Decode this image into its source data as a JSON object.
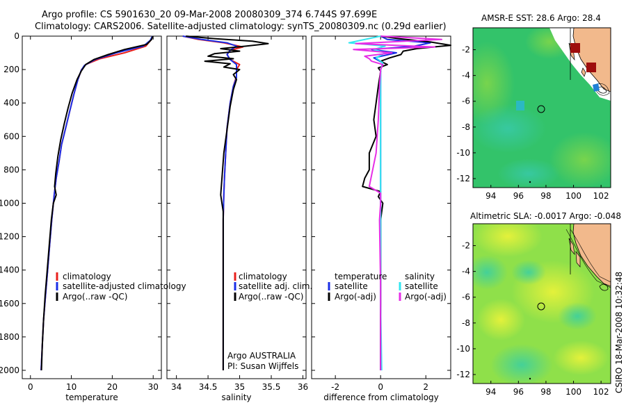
{
  "header": {
    "title_line1": "Argo profile: CS 5901630_20 09-Mar-2008 20080309_374 6.744S 97.699E",
    "title_line2": "Climatology: CARS2006. Satellite-adjusted climatology: synTS_20080309.nc (0.29d earlier)"
  },
  "colors": {
    "climatology": "#e8201c",
    "satellite": "#1a2ee6",
    "argo": "#000000",
    "salinity_satellite": "#33e6f0",
    "argo_adj": "#e62ee6",
    "land": "#f2b98c",
    "dark_red_marker": "#9e0d0d"
  },
  "chart_data": [
    {
      "type": "line",
      "xlabel": "temperature",
      "ylabel": "",
      "xlim": [
        -2,
        32
      ],
      "ylim": [
        2050,
        0
      ],
      "xticks": [
        0,
        10,
        20,
        30
      ],
      "yticks": [
        0,
        200,
        400,
        600,
        800,
        1000,
        1200,
        1400,
        1600,
        1800,
        2000
      ],
      "legend": [
        "climatology",
        "satellite-adjusted climatology",
        "Argo(..raw -QC)"
      ],
      "series": [
        {
          "name": "climatology",
          "color": "climatology",
          "points": [
            [
              29.8,
              0
            ],
            [
              29.4,
              25
            ],
            [
              28.2,
              60
            ],
            [
              23,
              100
            ],
            [
              17,
              135
            ],
            [
              13.5,
              170
            ],
            [
              12.5,
              200
            ],
            [
              11.6,
              260
            ],
            [
              10.6,
              350
            ],
            [
              9.6,
              450
            ],
            [
              8.6,
              550
            ],
            [
              7.6,
              650
            ],
            [
              7,
              750
            ],
            [
              6.3,
              850
            ],
            [
              5.8,
              950
            ],
            [
              5.2,
              1100
            ],
            [
              4.7,
              1250
            ],
            [
              4.2,
              1400
            ],
            [
              3.7,
              1550
            ],
            [
              3.2,
              1700
            ],
            [
              2.9,
              1850
            ],
            [
              2.6,
              2000
            ]
          ]
        },
        {
          "name": "satellite-adjusted climatology",
          "color": "satellite",
          "points": [
            [
              29.8,
              0
            ],
            [
              29.3,
              25
            ],
            [
              27.6,
              60
            ],
            [
              21,
              100
            ],
            [
              15.8,
              140
            ],
            [
              13.2,
              175
            ],
            [
              12.4,
              205
            ],
            [
              11.6,
              260
            ],
            [
              10.6,
              350
            ],
            [
              9.6,
              450
            ],
            [
              8.6,
              550
            ],
            [
              7.6,
              650
            ],
            [
              7,
              750
            ],
            [
              6.3,
              850
            ],
            [
              5.8,
              950
            ],
            [
              5.2,
              1100
            ],
            [
              4.7,
              1250
            ],
            [
              4.2,
              1400
            ],
            [
              3.7,
              1550
            ],
            [
              3.2,
              1700
            ],
            [
              2.9,
              1850
            ],
            [
              2.6,
              2000
            ]
          ]
        },
        {
          "name": "Argo(..raw -QC)",
          "color": "argo",
          "points": [
            [
              29.9,
              0
            ],
            [
              29.6,
              20
            ],
            [
              28.4,
              50
            ],
            [
              23,
              80
            ],
            [
              19,
              110
            ],
            [
              15.5,
              140
            ],
            [
              13.5,
              170
            ],
            [
              12.4,
              210
            ],
            [
              11.4,
              260
            ],
            [
              10.2,
              340
            ],
            [
              9.2,
              430
            ],
            [
              8.3,
              520
            ],
            [
              7.4,
              620
            ],
            [
              6.7,
              720
            ],
            [
              6.2,
              820
            ],
            [
              5.9,
              900
            ],
            [
              6.3,
              950
            ],
            [
              5.6,
              1000
            ],
            [
              5.1,
              1100
            ],
            [
              4.6,
              1250
            ],
            [
              4.1,
              1400
            ],
            [
              3.6,
              1550
            ],
            [
              3.2,
              1700
            ],
            [
              2.9,
              1850
            ],
            [
              2.7,
              2000
            ]
          ]
        }
      ]
    },
    {
      "type": "line",
      "xlabel": "salinity",
      "xlim": [
        33.85,
        36.05
      ],
      "ylim": [
        2050,
        0
      ],
      "xticks": [
        34,
        34.5,
        35,
        35.5,
        36
      ],
      "legend": [
        "climatology",
        "satellite adj. clim.",
        "Argo(..raw -QC)"
      ],
      "annotation_lines": [
        "Argo AUSTRALIA",
        "PI: Susan Wijffels"
      ],
      "series": [
        {
          "name": "climatology",
          "color": "climatology",
          "points": [
            [
              34.1,
              0
            ],
            [
              34.35,
              20
            ],
            [
              34.75,
              40
            ],
            [
              35.05,
              65
            ],
            [
              34.85,
              85
            ],
            [
              34.8,
              110
            ],
            [
              34.85,
              140
            ],
            [
              35.0,
              170
            ],
            [
              34.95,
              200
            ],
            [
              34.95,
              240
            ],
            [
              34.9,
              300
            ],
            [
              34.85,
              400
            ],
            [
              34.8,
              550
            ],
            [
              34.78,
              700
            ],
            [
              34.76,
              850
            ],
            [
              34.75,
              950
            ],
            [
              34.74,
              1100
            ],
            [
              34.74,
              1400
            ],
            [
              34.74,
              1700
            ],
            [
              34.74,
              2000
            ]
          ]
        },
        {
          "name": "satellite adj. clim.",
          "color": "satellite",
          "points": [
            [
              34.1,
              0
            ],
            [
              34.4,
              20
            ],
            [
              34.8,
              40
            ],
            [
              34.95,
              60
            ],
            [
              34.85,
              85
            ],
            [
              34.8,
              110
            ],
            [
              34.85,
              140
            ],
            [
              34.95,
              170
            ],
            [
              34.95,
              210
            ],
            [
              34.95,
              250
            ],
            [
              34.9,
              300
            ],
            [
              34.85,
              400
            ],
            [
              34.8,
              550
            ],
            [
              34.78,
              700
            ],
            [
              34.76,
              850
            ],
            [
              34.75,
              950
            ],
            [
              34.74,
              1100
            ],
            [
              34.74,
              1400
            ],
            [
              34.74,
              1700
            ],
            [
              34.74,
              2000
            ]
          ]
        },
        {
          "name": "Argo(..raw -QC)",
          "color": "argo",
          "points": [
            [
              34.15,
              0
            ],
            [
              34.6,
              15
            ],
            [
              35.2,
              30
            ],
            [
              35.45,
              45
            ],
            [
              35.1,
              60
            ],
            [
              34.7,
              75
            ],
            [
              35.0,
              90
            ],
            [
              34.6,
              105
            ],
            [
              34.5,
              120
            ],
            [
              34.9,
              135
            ],
            [
              34.45,
              150
            ],
            [
              34.85,
              165
            ],
            [
              34.75,
              185
            ],
            [
              35.0,
              200
            ],
            [
              34.9,
              230
            ],
            [
              34.95,
              260
            ],
            [
              34.9,
              320
            ],
            [
              34.85,
              420
            ],
            [
              34.8,
              560
            ],
            [
              34.75,
              700
            ],
            [
              34.72,
              850
            ],
            [
              34.7,
              950
            ],
            [
              34.74,
              1050
            ],
            [
              34.74,
              1300
            ],
            [
              34.74,
              1600
            ],
            [
              34.74,
              2000
            ]
          ]
        }
      ]
    },
    {
      "type": "line",
      "xlabel": "difference from climatology",
      "xlim": [
        -3.05,
        3.1
      ],
      "ylim": [
        2050,
        0
      ],
      "xticks": [
        -2,
        0,
        2
      ],
      "legend_groups": [
        {
          "heading": "temperature",
          "items": [
            "satellite",
            "Argo(-adj)"
          ]
        },
        {
          "heading": "salinity",
          "items": [
            "satellite",
            "Argo(-adj)"
          ]
        }
      ],
      "series": [
        {
          "name": "temperature satellite",
          "color": "satellite",
          "points": [
            [
              0,
              0
            ],
            [
              0.3,
              20
            ],
            [
              2.2,
              40
            ],
            [
              1.5,
              60
            ],
            [
              -0.4,
              80
            ],
            [
              0.7,
              100
            ],
            [
              -0.3,
              130
            ],
            [
              0.1,
              160
            ],
            [
              0.0,
              200
            ],
            [
              0.0,
              400
            ],
            [
              0,
              700
            ],
            [
              0,
              1000
            ],
            [
              0,
              1500
            ],
            [
              0,
              2000
            ]
          ]
        },
        {
          "name": "temperature Argo(-adj)",
          "color": "argo",
          "points": [
            [
              0,
              0
            ],
            [
              0.8,
              15
            ],
            [
              2.2,
              35
            ],
            [
              3.1,
              55
            ],
            [
              1.6,
              75
            ],
            [
              1.0,
              90
            ],
            [
              0.9,
              110
            ],
            [
              0.4,
              130
            ],
            [
              0.0,
              150
            ],
            [
              0.3,
              170
            ],
            [
              -0.1,
              190
            ],
            [
              0.0,
              210
            ],
            [
              -0.1,
              300
            ],
            [
              -0.2,
              400
            ],
            [
              -0.3,
              500
            ],
            [
              -0.2,
              600
            ],
            [
              -0.5,
              700
            ],
            [
              -0.5,
              800
            ],
            [
              -0.7,
              850
            ],
            [
              -0.8,
              900
            ],
            [
              0.0,
              930
            ],
            [
              -0.1,
              960
            ],
            [
              0.1,
              1000
            ],
            [
              0.0,
              1100
            ],
            [
              0.0,
              1500
            ],
            [
              0.0,
              2000
            ]
          ]
        },
        {
          "name": "salinity satellite",
          "color": "salinity_satellite",
          "points": [
            [
              0,
              0
            ],
            [
              -1.4,
              40
            ],
            [
              0.2,
              60
            ],
            [
              -0.3,
              80
            ],
            [
              0.2,
              100
            ],
            [
              -0.2,
              130
            ],
            [
              0.1,
              160
            ],
            [
              0.0,
              200
            ],
            [
              0.0,
              400
            ],
            [
              0,
              800
            ],
            [
              0,
              1200
            ],
            [
              0,
              1600
            ],
            [
              0.05,
              2000
            ]
          ]
        },
        {
          "name": "salinity Argo(-adj)",
          "color": "argo_adj",
          "points": [
            [
              0,
              0
            ],
            [
              2.7,
              20
            ],
            [
              -1.1,
              45
            ],
            [
              2.4,
              65
            ],
            [
              -1.2,
              80
            ],
            [
              0.5,
              100
            ],
            [
              -0.7,
              120
            ],
            [
              -0.5,
              135
            ],
            [
              -0.4,
              150
            ],
            [
              0.1,
              170
            ],
            [
              0.0,
              200
            ],
            [
              -0.05,
              300
            ],
            [
              -0.1,
              500
            ],
            [
              -0.2,
              700
            ],
            [
              -0.35,
              800
            ],
            [
              -0.5,
              900
            ],
            [
              0.0,
              940
            ],
            [
              0.0,
              1000
            ],
            [
              -0.05,
              1100
            ],
            [
              0.0,
              1500
            ],
            [
              0.0,
              2000
            ]
          ]
        }
      ]
    }
  ],
  "maps": {
    "top": {
      "title": "AMSR-E SST: 28.6 Argo: 28.4",
      "xticks": [
        "94",
        "96",
        "98",
        "100",
        "102"
      ],
      "yticks": [
        "-2",
        "-4",
        "-6",
        "-8",
        "-10",
        "-12"
      ],
      "lon_range": [
        92.7,
        102.7
      ],
      "lat_range": [
        -12.7,
        -0.3
      ],
      "profile_location": [
        97.699,
        -6.744
      ]
    },
    "bottom": {
      "title": "Altimetric SLA: -0.0017 Argo: -0.048",
      "xticks": [
        "94",
        "96",
        "98",
        "100",
        "102"
      ],
      "yticks": [
        "-2",
        "-4",
        "-6",
        "-8",
        "-10",
        "-12"
      ],
      "lon_range": [
        92.7,
        102.7
      ],
      "lat_range": [
        -12.7,
        -0.3
      ],
      "profile_location": [
        97.699,
        -6.744
      ]
    }
  },
  "credit": "CSIRO 18-Mar-2008 10:32:48"
}
